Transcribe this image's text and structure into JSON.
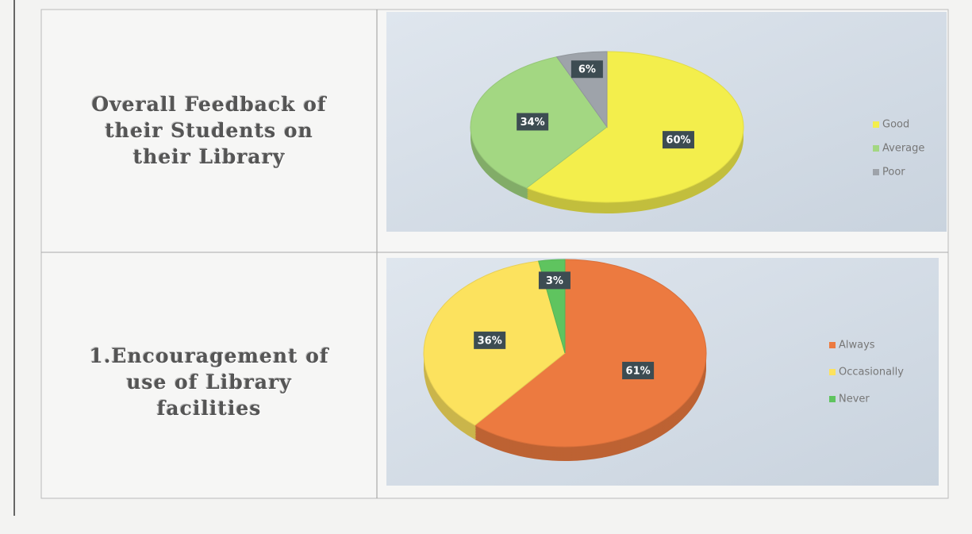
{
  "row_labels": [
    "Overall Feedback of their Students on their Library",
    "1.Encouragement of use of Library facilities"
  ],
  "chart_data": [
    {
      "type": "pie",
      "categories": [
        "Good",
        "Average",
        "Poor"
      ],
      "values": [
        60,
        34,
        6
      ],
      "value_labels": [
        "60%",
        "34%",
        "6%"
      ],
      "colors": [
        "#f3ee4c",
        "#a3d782",
        "#9ea3aa"
      ],
      "legend": "right"
    },
    {
      "type": "pie",
      "categories": [
        "Always",
        "Occasionally",
        "Never"
      ],
      "values": [
        61,
        36,
        3
      ],
      "value_labels": [
        "61%",
        "36%",
        "3%"
      ],
      "colors": [
        "#ec7a40",
        "#fce25e",
        "#5fc45f"
      ],
      "legend": "right"
    }
  ]
}
